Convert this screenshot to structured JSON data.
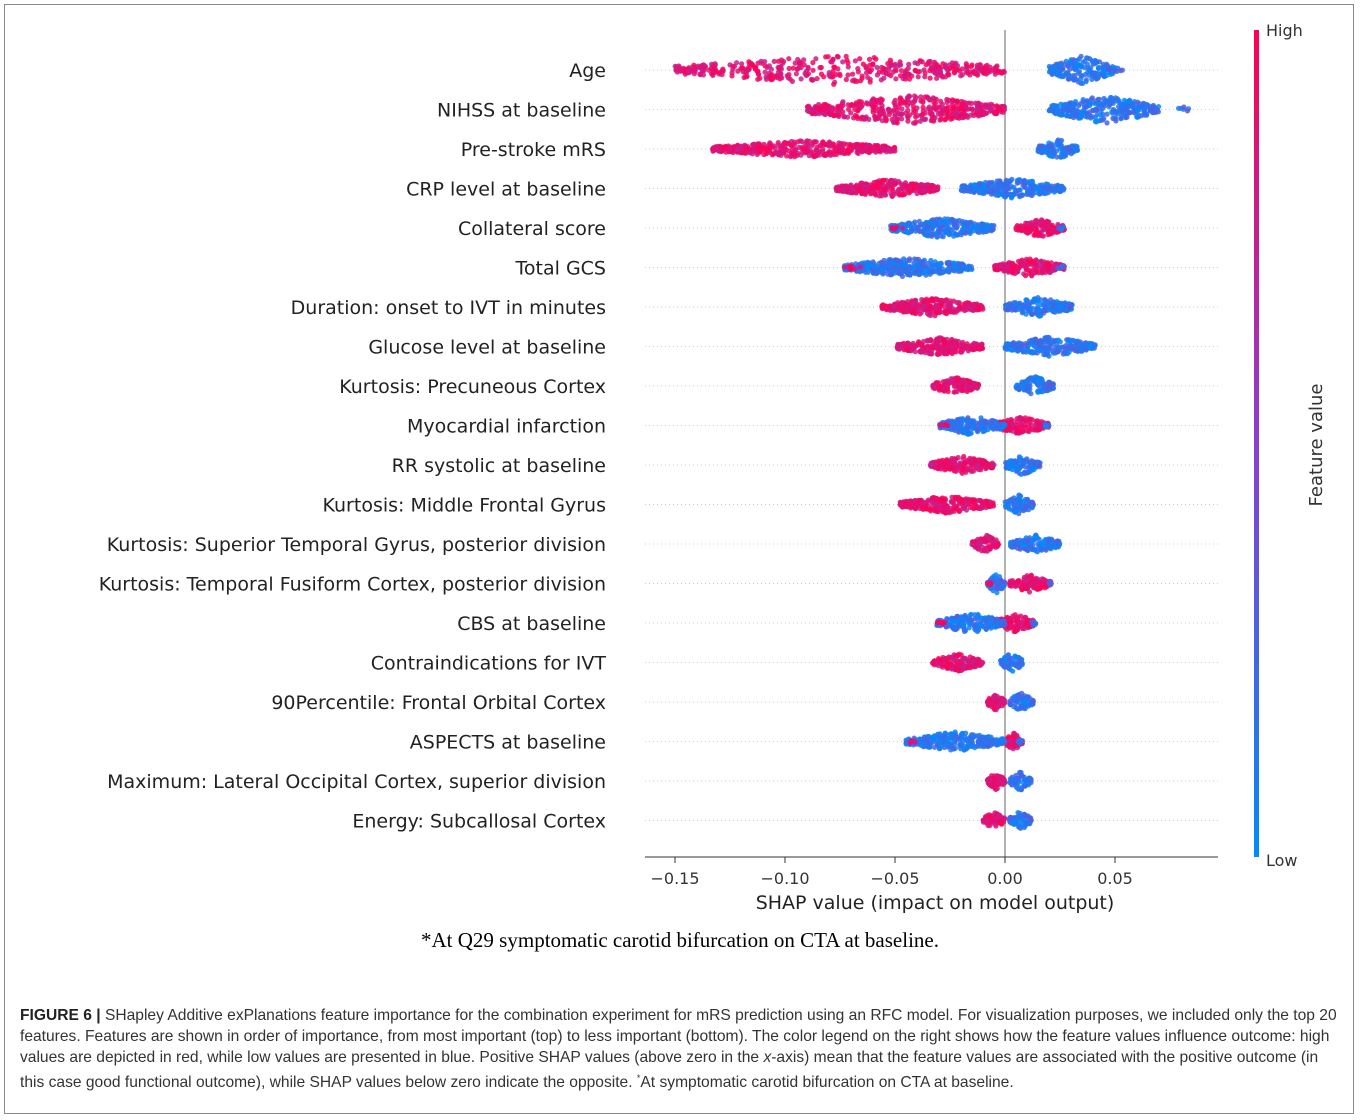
{
  "chart_data": {
    "type": "scatter",
    "subtype": "shap-beeswarm",
    "features": [
      {
        "name": "Age",
        "min": -0.155,
        "max": 0.055,
        "low_region": [
          0.02,
          0.05
        ],
        "high_region": [
          -0.15,
          0.0
        ]
      },
      {
        "name": "NIHSS at baseline ",
        "min": -0.09,
        "max": 0.085,
        "low_region": [
          0.02,
          0.07
        ],
        "high_region": [
          -0.09,
          0.0
        ]
      },
      {
        "name": "Pre-stroke mRS",
        "min": -0.133,
        "max": 0.033,
        "low_region": [
          0.015,
          0.033
        ],
        "high_region": [
          -0.133,
          -0.05
        ]
      },
      {
        "name": "CRP level at baseline ",
        "min": -0.077,
        "max": 0.027,
        "low_region": [
          -0.02,
          0.027
        ],
        "high_region": [
          -0.077,
          -0.03
        ]
      },
      {
        "name": "Collateral score ",
        "min": -0.052,
        "max": 0.027,
        "low_region": [
          -0.052,
          -0.005
        ],
        "high_region": [
          0.005,
          0.027
        ]
      },
      {
        "name": "Total GCS ",
        "min": -0.073,
        "max": 0.027,
        "low_region": [
          -0.073,
          -0.015
        ],
        "high_region": [
          -0.005,
          0.027
        ]
      },
      {
        "name": "Duration: onset to IVT in minutes ",
        "min": -0.056,
        "max": 0.031,
        "low_region": [
          0.0,
          0.031
        ],
        "high_region": [
          -0.056,
          -0.01
        ]
      },
      {
        "name": "Glucose level at baseline ",
        "min": -0.049,
        "max": 0.041,
        "low_region": [
          0.0,
          0.041
        ],
        "high_region": [
          -0.049,
          -0.01
        ]
      },
      {
        "name": "Kurtosis: Precuneous Cortex",
        "min": -0.033,
        "max": 0.022,
        "low_region": [
          0.005,
          0.022
        ],
        "high_region": [
          -0.033,
          -0.012
        ]
      },
      {
        "name": "Myocardial infarction",
        "min": -0.03,
        "max": 0.02,
        "low_region": [
          -0.03,
          0.0
        ],
        "high_region": [
          -0.005,
          0.02
        ]
      },
      {
        "name": "RR systolic at baseline ",
        "min": -0.034,
        "max": 0.016,
        "low_region": [
          0.0,
          0.016
        ],
        "high_region": [
          -0.034,
          -0.005
        ]
      },
      {
        "name": "Kurtosis: Middle Frontal Gyrus",
        "min": -0.048,
        "max": 0.013,
        "low_region": [
          0.0,
          0.013
        ],
        "high_region": [
          -0.048,
          -0.005
        ]
      },
      {
        "name": "Kurtosis: Superior Temporal Gyrus, posterior division",
        "min": -0.015,
        "max": 0.025,
        "low_region": [
          0.002,
          0.025
        ],
        "high_region": [
          -0.015,
          -0.002
        ]
      },
      {
        "name": "Kurtosis: Temporal Fusiform Cortex, posterior division",
        "min": -0.008,
        "max": 0.021,
        "low_region": [
          -0.008,
          0.0
        ],
        "high_region": [
          0.002,
          0.021
        ]
      },
      {
        "name": "CBS at baseline ",
        "min": -0.031,
        "max": 0.014,
        "low_region": [
          -0.031,
          0.0
        ],
        "high_region": [
          -0.005,
          0.014
        ]
      },
      {
        "name": "Contraindications for IVT",
        "min": -0.033,
        "max": 0.008,
        "low_region": [
          -0.002,
          0.008
        ],
        "high_region": [
          -0.033,
          -0.01
        ]
      },
      {
        "name": "90Percentile: Frontal Orbital Cortex",
        "min": -0.008,
        "max": 0.013,
        "low_region": [
          0.002,
          0.013
        ],
        "high_region": [
          -0.008,
          0.0
        ]
      },
      {
        "name": "ASPECTS at baseline ",
        "min": -0.045,
        "max": 0.008,
        "low_region": [
          -0.045,
          0.0
        ],
        "high_region": [
          0.0,
          0.008
        ]
      },
      {
        "name": "Maximum: Lateral Occipital Cortex, superior division",
        "min": -0.008,
        "max": 0.012,
        "low_region": [
          0.002,
          0.012
        ],
        "high_region": [
          -0.008,
          0.0
        ]
      },
      {
        "name": "Energy: Subcallosal Cortex",
        "min": -0.01,
        "max": 0.012,
        "low_region": [
          0.002,
          0.012
        ],
        "high_region": [
          -0.01,
          0.0
        ]
      }
    ],
    "xlabel": "SHAP value (impact on model output)",
    "xlim": [
      -0.165,
      0.085
    ],
    "xticks": [
      -0.15,
      -0.1,
      -0.05,
      0.0,
      0.05
    ],
    "xtick_labels": [
      "−0.15",
      "−0.10",
      "−0.05",
      "0.00",
      "0.05"
    ],
    "colorbar": {
      "label": "Feature value",
      "high_label": "High",
      "low_label": "Low",
      "high_color": "#ff0052",
      "low_color": "#008bfb"
    },
    "zero_line": true,
    "row_gridlines": "dotted"
  },
  "footnote": "*At Q29 symptomatic carotid bifurcation on CTA at baseline.",
  "caption": {
    "label": "FIGURE 6 |",
    "text_before_italic": " SHapley Additive exPlanations feature importance for the combination experiment for mRS prediction using an RFC model. For visualization purposes, we included only the top 20 features. Features are shown in order of importance, from most important (top) to less important (bottom). The color legend on the right shows how the feature values influence outcome: high values are depicted in red, while low values are presented in blue. Positive SHAP values (above zero in the ",
    "italic_x": "x",
    "text_after_italic": "-axis) mean that the feature values are associated with the positive outcome (in this case good functional outcome), while SHAP values below zero indicate the opposite. ",
    "sup": "*",
    "text_end": "At symptomatic carotid bifurcation on CTA at baseline."
  }
}
